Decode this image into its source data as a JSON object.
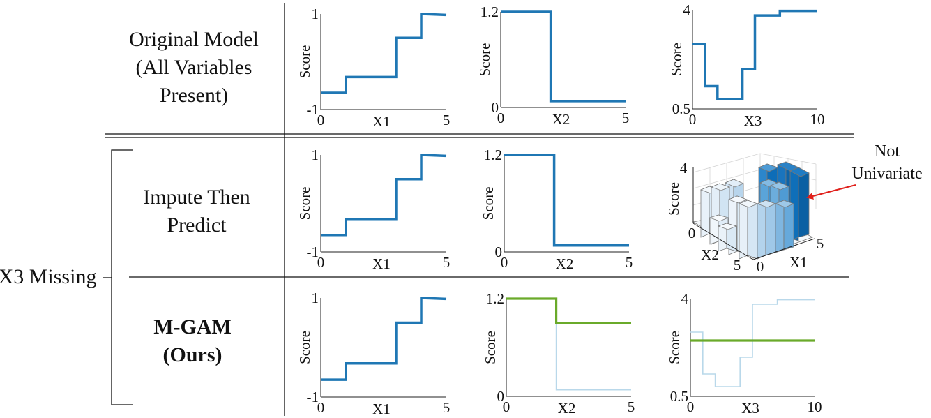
{
  "rows": {
    "original": {
      "line1": "Original Model",
      "line2": "(All Variables",
      "line3": "Present)"
    },
    "impute": {
      "line1": "Impute Then",
      "line2": "Predict"
    },
    "mgam": {
      "line1": "M-GAM",
      "line2": "(Ours)"
    }
  },
  "group_label": "X3 Missing",
  "annotation": {
    "line1": "Not",
    "line2": "Univariate"
  },
  "y_axis_label": "Score",
  "colors": {
    "main_step": "#1f77b4",
    "mgam_green": "#6aaa2a",
    "faded": "#b9d8ea",
    "arrow": "#e0201b",
    "bar_dark": "#0d6db8",
    "bar_light": "#e8f1f9"
  },
  "chart_data": [
    {
      "id": "orig-x1",
      "type": "line",
      "xlabel": "X1",
      "ylabel": "Score",
      "xlim": [
        0,
        5
      ],
      "ylim": [
        -1,
        1
      ],
      "x_ticks": [
        "0",
        "5"
      ],
      "y_ticks": [
        "-1",
        "1"
      ],
      "series": [
        {
          "x": [
            0,
            1,
            1,
            3,
            3,
            4,
            4,
            5
          ],
          "y": [
            -0.65,
            -0.65,
            -0.32,
            -0.32,
            0.5,
            0.5,
            1.0,
            0.98
          ]
        }
      ]
    },
    {
      "id": "orig-x2",
      "type": "line",
      "xlabel": "X2",
      "ylabel": "Score",
      "xlim": [
        0,
        5
      ],
      "ylim": [
        0,
        1.2
      ],
      "x_ticks": [
        "0",
        "5"
      ],
      "y_ticks": [
        "0",
        "1.2"
      ],
      "series": [
        {
          "x": [
            0,
            2,
            2,
            5
          ],
          "y": [
            1.2,
            1.2,
            0.08,
            0.08
          ]
        }
      ]
    },
    {
      "id": "orig-x3",
      "type": "line",
      "xlabel": "X3",
      "ylabel": "Score",
      "xlim": [
        0,
        10
      ],
      "ylim": [
        0.5,
        4
      ],
      "x_ticks": [
        "0",
        "10"
      ],
      "y_ticks": [
        "0.5",
        "4"
      ],
      "series": [
        {
          "x": [
            0,
            1,
            1,
            2,
            2,
            4,
            4,
            5,
            5,
            7,
            7,
            10
          ],
          "y": [
            2.8,
            2.8,
            1.3,
            1.3,
            0.85,
            0.85,
            1.9,
            1.9,
            3.8,
            3.8,
            3.96,
            3.96
          ]
        }
      ]
    },
    {
      "id": "impute-x1",
      "type": "line",
      "xlabel": "X1",
      "ylabel": "Score",
      "xlim": [
        0,
        5
      ],
      "ylim": [
        -1,
        1
      ],
      "x_ticks": [
        "0",
        "5"
      ],
      "y_ticks": [
        "-1",
        "1"
      ],
      "series": [
        {
          "x": [
            0,
            1,
            1,
            3,
            3,
            4,
            4,
            5
          ],
          "y": [
            -0.65,
            -0.65,
            -0.32,
            -0.32,
            0.5,
            0.5,
            1.0,
            0.98
          ]
        }
      ]
    },
    {
      "id": "impute-x2",
      "type": "line",
      "xlabel": "X2",
      "ylabel": "Score",
      "xlim": [
        0,
        5
      ],
      "ylim": [
        0,
        1.2
      ],
      "x_ticks": [
        "0",
        "5"
      ],
      "y_ticks": [
        "0",
        "1.2"
      ],
      "series": [
        {
          "x": [
            0,
            2,
            2,
            5
          ],
          "y": [
            1.2,
            1.2,
            0.08,
            0.08
          ]
        }
      ]
    },
    {
      "id": "impute-3d",
      "type": "bar",
      "subtype": "3d-bar",
      "xlabel": "X1",
      "ylabel": "X2",
      "zlabel": "Score",
      "x_ticks": [
        "0",
        "5"
      ],
      "y_ticks": [
        "5",
        "0"
      ],
      "z_ticks": [
        "4"
      ]
    },
    {
      "id": "mgam-x1",
      "type": "line",
      "xlabel": "X1",
      "ylabel": "Score",
      "xlim": [
        0,
        5
      ],
      "ylim": [
        -1,
        1
      ],
      "x_ticks": [
        "0",
        "5"
      ],
      "y_ticks": [
        "-1",
        "1"
      ],
      "series": [
        {
          "x": [
            0,
            1,
            1,
            3,
            3,
            4,
            4,
            5
          ],
          "y": [
            -0.65,
            -0.65,
            -0.32,
            -0.32,
            0.5,
            0.5,
            1.0,
            0.98
          ]
        }
      ]
    },
    {
      "id": "mgam-x2",
      "type": "line",
      "xlabel": "X2",
      "ylabel": "Score",
      "xlim": [
        0,
        5
      ],
      "ylim": [
        0,
        1.2
      ],
      "x_ticks": [
        "0",
        "5"
      ],
      "y_ticks": [
        "0",
        "1.2"
      ],
      "series": [
        {
          "style": "faded",
          "x": [
            0,
            2,
            2,
            5
          ],
          "y": [
            1.2,
            1.2,
            0.08,
            0.08
          ]
        },
        {
          "style": "green",
          "x": [
            0,
            2,
            2,
            5
          ],
          "y": [
            1.2,
            1.2,
            0.9,
            0.9
          ]
        }
      ]
    },
    {
      "id": "mgam-x3",
      "type": "line",
      "xlabel": "X3",
      "ylabel": "Score",
      "xlim": [
        0,
        10
      ],
      "ylim": [
        0.5,
        4
      ],
      "x_ticks": [
        "0",
        "10"
      ],
      "y_ticks": [
        "0.5",
        "4"
      ],
      "series": [
        {
          "style": "faded",
          "x": [
            0,
            1,
            1,
            2,
            2,
            4,
            4,
            5,
            5,
            7,
            7,
            10
          ],
          "y": [
            2.8,
            2.8,
            1.3,
            1.3,
            0.85,
            0.85,
            1.9,
            1.9,
            3.8,
            3.8,
            3.96,
            3.96
          ]
        },
        {
          "style": "green",
          "x": [
            0,
            10
          ],
          "y": [
            2.5,
            2.5
          ]
        }
      ]
    }
  ]
}
